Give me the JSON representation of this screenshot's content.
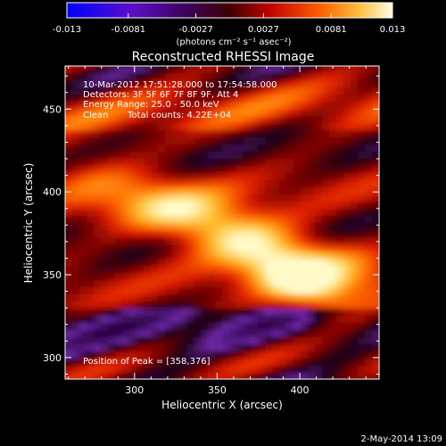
{
  "title": "Reconstructed RHESSI Image",
  "colorbar": {
    "tick_labels": [
      "-0.013",
      "-0.0081",
      "-0.0027",
      "0.0027",
      "0.0081",
      "0.013"
    ],
    "tick_values": [
      -0.013,
      -0.0081,
      -0.0027,
      0.0027,
      0.0081,
      0.013
    ],
    "range": [
      -0.013,
      0.013
    ],
    "units_label": "(photons cm⁻² s⁻¹ asec⁻²)",
    "colors": [
      "#0000ff",
      "#6a0dad",
      "#2a0030",
      "#b00000",
      "#ff5a00",
      "#ffc040",
      "#ffffe0"
    ]
  },
  "axes": {
    "xlabel": "Heliocentric X (arcsec)",
    "ylabel": "Heliocentric Y (arcsec)",
    "x_range": [
      258,
      448
    ],
    "y_range": [
      287,
      476
    ],
    "x_ticks": [
      300,
      350,
      400
    ],
    "y_ticks": [
      300,
      350,
      400,
      450
    ],
    "x_tick_labels": [
      "300",
      "350",
      "400"
    ],
    "y_tick_labels": [
      "300",
      "350",
      "400",
      "450"
    ]
  },
  "overlay": {
    "line1": "10-Mar-2012 17:51:28.000 to 17:54:58.000",
    "line2": "Detectors: 3F 5F 6F 7F 8F 9F, Att 4",
    "line3": "Energy Range: 25.0 - 50.0 keV",
    "line4_left": "Clean",
    "line4_right": "Total counts: 4.22E+04",
    "peak": "Position of Peak = [358,376]"
  },
  "footer": {
    "date": "2-May-2014 13:09"
  },
  "image": {
    "peak_position": [
      358,
      376
    ]
  }
}
